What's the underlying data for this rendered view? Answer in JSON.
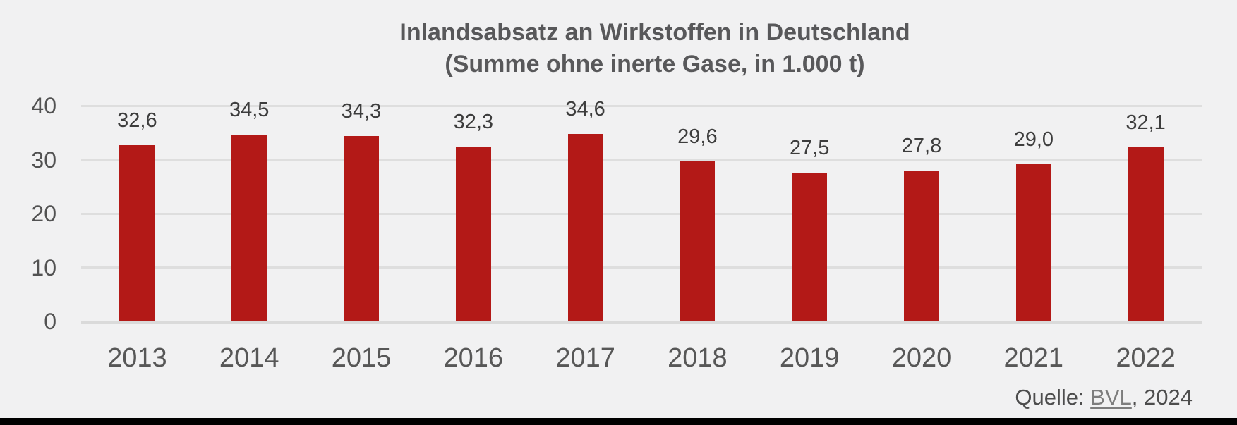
{
  "page": {
    "background_color": "#f1f1f2",
    "footer_bar_color": "#000000"
  },
  "chart_data": {
    "type": "bar",
    "title": "Inlandsabsatz an Wirkstoffen in Deutschland",
    "subtitle": "(Summe ohne inerte Gase, in 1.000 t)",
    "categories": [
      "2013",
      "2014",
      "2015",
      "2016",
      "2017",
      "2018",
      "2019",
      "2020",
      "2021",
      "2022"
    ],
    "values": [
      32.6,
      34.5,
      34.3,
      32.3,
      34.6,
      29.6,
      27.5,
      27.8,
      29.0,
      32.1
    ],
    "value_labels": [
      "32,6",
      "34,5",
      "34,3",
      "32,3",
      "34,6",
      "29,6",
      "27,5",
      "27,8",
      "29,0",
      "32,1"
    ],
    "xlabel": "",
    "ylabel": "",
    "ylim": [
      0,
      40
    ],
    "yticks": [
      0,
      10,
      20,
      30,
      40
    ],
    "grid": true,
    "legend": false,
    "bar_color": "#b31917",
    "gridline_color": "#dedede",
    "title_color": "#58585a",
    "label_color": "#3d3d3d"
  },
  "source": {
    "prefix": "Quelle: ",
    "link_text": "BVL",
    "suffix": ", 2024"
  }
}
